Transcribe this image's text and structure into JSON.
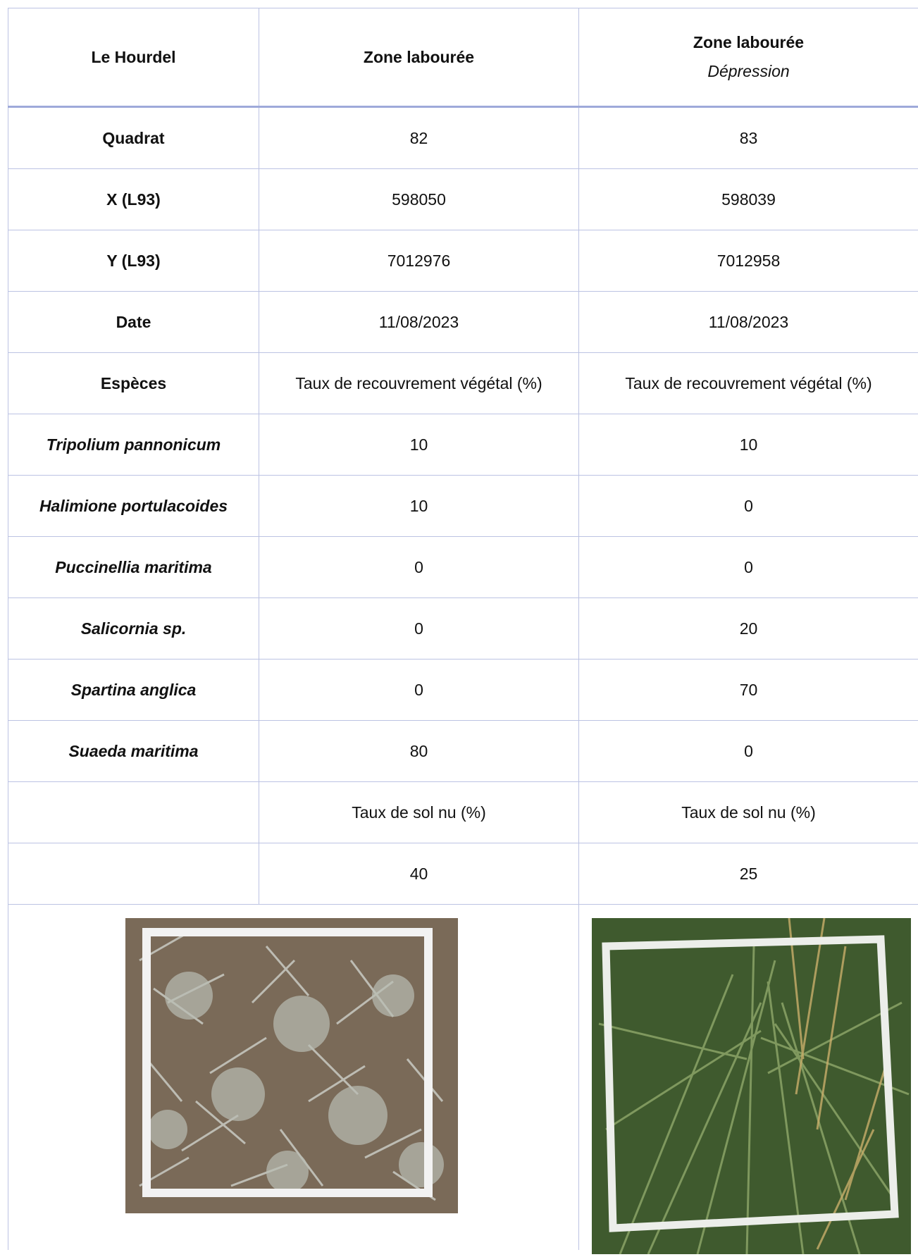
{
  "table": {
    "header": [
      {
        "text": "Le Hourdel"
      },
      {
        "text": "Zone labourée"
      },
      {
        "text": "Zone labourée",
        "subtitle": "Dépression"
      }
    ],
    "rows": [
      {
        "label": "Quadrat",
        "values": [
          "82",
          "83"
        ]
      },
      {
        "label": "X (L93)",
        "values": [
          "598050",
          "598039"
        ]
      },
      {
        "label": "Y (L93)",
        "values": [
          "7012976",
          "7012958"
        ]
      },
      {
        "label": "Date",
        "values": [
          "11/08/2023",
          "11/08/2023"
        ]
      },
      {
        "label": "Espèces",
        "values": [
          "Taux de recouvrement végétal (%)",
          "Taux de recouvrement végétal (%)"
        ]
      },
      {
        "label": "Tripolium pannonicum",
        "species": true,
        "values": [
          "10",
          "10"
        ]
      },
      {
        "label": "Halimione portulacoides",
        "species": true,
        "values": [
          "10",
          "0"
        ]
      },
      {
        "label": "Puccinellia maritima",
        "species": true,
        "values": [
          "0",
          "0"
        ]
      },
      {
        "label": "Salicornia sp.",
        "species": true,
        "values": [
          "0",
          "20"
        ]
      },
      {
        "label": "Spartina anglica",
        "species": true,
        "values": [
          "0",
          "70"
        ]
      },
      {
        "label": "Suaeda maritima",
        "species": true,
        "values": [
          "80",
          "0"
        ]
      },
      {
        "values": [
          "Taux de sol nu (%)",
          "Taux de sol nu (%)"
        ]
      },
      {
        "values": [
          "40",
          "25"
        ]
      }
    ]
  }
}
